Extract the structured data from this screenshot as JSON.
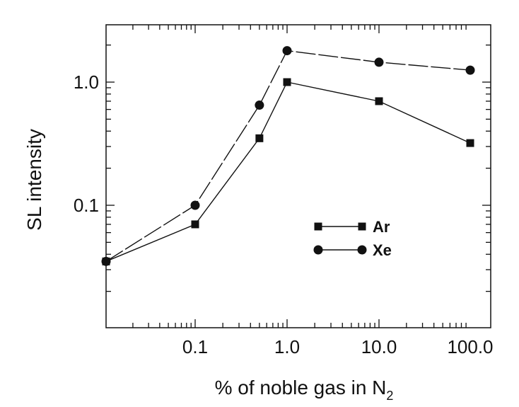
{
  "chart_data": {
    "type": "line",
    "xlabel": "% of noble gas in N",
    "xlabel_subscript": "2",
    "ylabel": "SL intensity",
    "xscale": "log",
    "yscale": "log",
    "xlim": [
      0.01,
      100
    ],
    "ylim": [
      0.01,
      3
    ],
    "x_ticks": [
      {
        "value": 0.1,
        "label": "0.1"
      },
      {
        "value": 1,
        "label": "1.0"
      },
      {
        "value": 10,
        "label": "10.0"
      },
      {
        "value": 100,
        "label": "100.0"
      }
    ],
    "y_ticks": [
      {
        "value": 0.1,
        "label": "0.1"
      },
      {
        "value": 1,
        "label": "1.0"
      }
    ],
    "legend_position": "center-right",
    "series": [
      {
        "name": "Ar",
        "marker": "square",
        "line": "solid",
        "color": "#111111",
        "x": [
          0.01,
          0.1,
          0.5,
          1,
          10,
          100
        ],
        "y": [
          0.035,
          0.07,
          0.35,
          1.0,
          0.7,
          0.32
        ]
      },
      {
        "name": "Xe",
        "marker": "circle",
        "line": "long-dash",
        "color": "#111111",
        "x": [
          0.01,
          0.1,
          0.5,
          1,
          10,
          100
        ],
        "y": [
          0.035,
          0.1,
          0.65,
          1.8,
          1.45,
          1.25
        ]
      }
    ]
  }
}
